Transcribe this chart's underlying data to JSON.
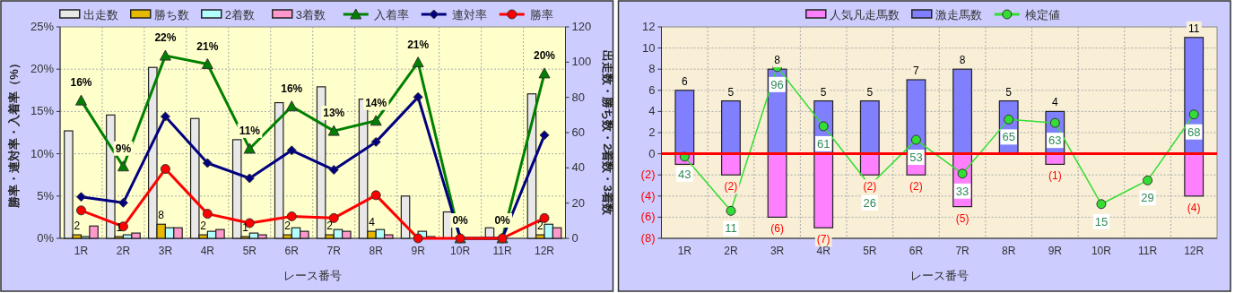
{
  "chart_data": [
    {
      "type": "bar",
      "xlabel": "レース番号",
      "ylabel": "勝率・連対率・入着率（%）",
      "y2label": "出走数・勝ち数・2着数・3着数",
      "categories": [
        "1R",
        "2R",
        "3R",
        "4R",
        "5R",
        "6R",
        "7R",
        "8R",
        "9R",
        "10R",
        "11R",
        "12R"
      ],
      "ylim": [
        0,
        25
      ],
      "yticks": [
        {
          "value": 0,
          "label": "0%"
        },
        {
          "value": 5,
          "label": "5%"
        },
        {
          "value": 10,
          "label": "10%"
        },
        {
          "value": 15,
          "label": "15%"
        },
        {
          "value": 20,
          "label": "20%"
        },
        {
          "value": 25,
          "label": "25%"
        }
      ],
      "y2lim": [
        0,
        120
      ],
      "y2ticks": [
        0,
        20,
        40,
        60,
        80,
        100,
        120
      ],
      "grid": true,
      "legend": "top",
      "series": [
        {
          "name": "出走数",
          "color": "#e8e8e8",
          "axis": "y2",
          "values": [
            61,
            70,
            97,
            68,
            56,
            77,
            86,
            79,
            24,
            15,
            6,
            82
          ]
        },
        {
          "name": "勝ち数",
          "color": "#e6b800",
          "axis": "y2",
          "values": [
            2,
            1,
            8,
            2,
            1,
            2,
            2,
            4,
            0,
            0,
            0,
            2
          ],
          "value_labels": [
            "2",
            "1",
            "8",
            "2",
            "1",
            "2",
            "2",
            "4",
            null,
            null,
            null,
            "2"
          ]
        },
        {
          "name": "2着数",
          "color": "#b3ffff",
          "axis": "y2",
          "values": [
            1,
            2,
            6,
            4,
            3,
            6,
            5,
            5,
            4,
            0,
            0,
            8
          ]
        },
        {
          "name": "3着数",
          "color": "#ff99cc",
          "axis": "y2",
          "values": [
            7,
            3,
            6,
            5,
            2,
            4,
            4,
            2,
            1,
            0,
            0,
            6
          ]
        },
        {
          "name": "入着率",
          "type": "line",
          "color": "#008000",
          "marker": "triangle",
          "values": [
            16.3,
            8.5,
            21.6,
            20.6,
            10.6,
            15.6,
            12.7,
            13.9,
            20.8,
            0,
            0,
            19.5
          ],
          "value_labels": [
            "16%",
            "9%",
            "22%",
            "21%",
            "11%",
            "16%",
            "13%",
            "14%",
            "21%",
            "0%",
            "0%",
            "20%"
          ]
        },
        {
          "name": "連対率",
          "type": "line",
          "color": "#000080",
          "marker": "diamond",
          "values": [
            4.9,
            4.2,
            14.4,
            8.9,
            7.1,
            10.4,
            8.1,
            11.4,
            16.7,
            0,
            0,
            12.2
          ]
        },
        {
          "name": "勝率",
          "type": "line",
          "color": "#ff0000",
          "marker": "circle",
          "values": [
            3.3,
            1.4,
            8.2,
            2.9,
            1.8,
            2.6,
            2.4,
            5.1,
            0,
            0,
            0,
            2.4
          ]
        }
      ]
    },
    {
      "type": "bar",
      "stacked": true,
      "xlabel": "レース番号",
      "categories": [
        "1R",
        "2R",
        "3R",
        "4R",
        "5R",
        "6R",
        "7R",
        "8R",
        "9R",
        "10R",
        "11R",
        "12R"
      ],
      "ylim": [
        -8,
        12
      ],
      "yticks": [
        {
          "value": -8,
          "label": "(8)"
        },
        {
          "value": -6,
          "label": "(6)"
        },
        {
          "value": -4,
          "label": "(4)"
        },
        {
          "value": -2,
          "label": "(2)"
        },
        0,
        2,
        4,
        6,
        8,
        10,
        12
      ],
      "grid": true,
      "legend": "top",
      "y2lim": [
        -5.25,
        119.75
      ],
      "ref_lines": [
        {
          "axis": "y",
          "value": 0,
          "color": "#ff0000"
        }
      ],
      "series": [
        {
          "name": "人気凡走馬数",
          "color": "#ff80ff",
          "values": [
            -1,
            -2,
            -6,
            -7,
            -2,
            -2,
            -5,
            0,
            -1,
            0,
            0,
            -4
          ],
          "value_labels": [
            null,
            "(2)",
            "(6)",
            "(7)",
            "(2)",
            "(2)",
            "(5)",
            null,
            "(1)",
            null,
            null,
            "(4)"
          ]
        },
        {
          "name": "激走馬数",
          "color": "#8080ff",
          "values": [
            6,
            5,
            8,
            5,
            5,
            7,
            8,
            5,
            4,
            0,
            0,
            11
          ],
          "value_labels": [
            "6",
            "5",
            "8",
            "5",
            "5",
            "7",
            "8",
            "5",
            "4",
            null,
            null,
            "11"
          ]
        },
        {
          "name": "検定値",
          "type": "line",
          "color": "#33dd33",
          "marker": "circle",
          "axis": "y2",
          "values": [
            43,
            11,
            96,
            61,
            26,
            53,
            33,
            65,
            63,
            15,
            29,
            68
          ],
          "data_labels": true
        }
      ]
    }
  ]
}
